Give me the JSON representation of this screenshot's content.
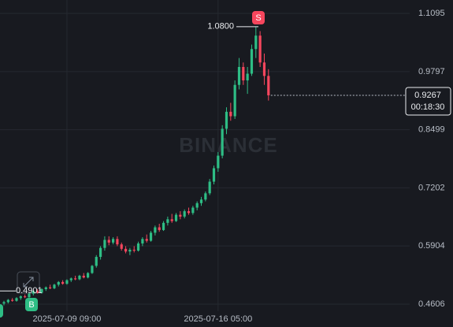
{
  "chart_data": {
    "type": "candlestick",
    "categories": [
      null,
      null,
      null,
      null,
      null,
      null,
      null,
      null,
      null,
      null,
      null,
      null,
      null,
      null,
      null,
      "2025-07-09 09:00",
      null,
      null,
      null,
      null,
      null,
      null,
      null,
      null,
      null,
      null,
      null,
      null,
      null,
      null,
      null,
      null,
      null,
      null,
      null,
      null,
      null,
      null,
      null,
      null,
      null,
      null,
      null,
      null,
      null,
      null,
      null,
      null,
      null,
      null,
      null,
      "2025-07-16 05:00",
      null,
      null,
      null,
      null,
      null,
      null,
      null,
      null,
      null,
      null,
      null,
      null
    ],
    "open": [
      0.462,
      0.465,
      0.47,
      0.468,
      0.474,
      0.478,
      0.476,
      0.484,
      0.49,
      0.486,
      0.494,
      0.498,
      0.496,
      0.504,
      0.51,
      0.506,
      0.514,
      0.518,
      0.516,
      0.524,
      0.52,
      0.53,
      0.546,
      0.566,
      0.586,
      0.604,
      0.598,
      0.606,
      0.594,
      0.584,
      0.578,
      0.582,
      0.58,
      0.596,
      0.606,
      0.602,
      0.62,
      0.632,
      0.626,
      0.642,
      0.65,
      0.646,
      0.66,
      0.656,
      0.668,
      0.664,
      0.676,
      0.686,
      0.694,
      0.708,
      0.734,
      0.764,
      0.792,
      0.852,
      0.89,
      0.88,
      0.95,
      0.99,
      0.96,
      0.975,
      1.03,
      1.06,
      1.0,
      0.97
    ],
    "high": [
      0.468,
      0.472,
      0.474,
      0.476,
      0.48,
      0.482,
      0.486,
      0.492,
      0.494,
      0.496,
      0.5,
      0.504,
      0.506,
      0.512,
      0.514,
      0.516,
      0.52,
      0.524,
      0.526,
      0.53,
      0.532,
      0.548,
      0.57,
      0.59,
      0.612,
      0.612,
      0.61,
      0.612,
      0.598,
      0.59,
      0.586,
      0.59,
      0.6,
      0.61,
      0.616,
      0.624,
      0.636,
      0.64,
      0.646,
      0.656,
      0.662,
      0.664,
      0.668,
      0.672,
      0.676,
      0.68,
      0.69,
      0.7,
      0.712,
      0.74,
      0.77,
      0.8,
      0.86,
      0.9,
      0.91,
      0.96,
      1.01,
      1.0,
      0.99,
      1.04,
      1.08,
      1.07,
      1.02,
      0.985
    ],
    "low": [
      0.458,
      0.462,
      0.466,
      0.466,
      0.47,
      0.474,
      0.474,
      0.48,
      0.484,
      0.484,
      0.49,
      0.494,
      0.494,
      0.5,
      0.504,
      0.504,
      0.51,
      0.514,
      0.514,
      0.518,
      0.518,
      0.528,
      0.542,
      0.56,
      0.58,
      0.592,
      0.594,
      0.59,
      0.58,
      0.574,
      0.57,
      0.576,
      0.578,
      0.59,
      0.598,
      0.6,
      0.614,
      0.622,
      0.624,
      0.636,
      0.642,
      0.644,
      0.65,
      0.652,
      0.66,
      0.66,
      0.67,
      0.68,
      0.69,
      0.704,
      0.728,
      0.756,
      0.786,
      0.84,
      0.87,
      0.874,
      0.94,
      0.95,
      0.93,
      0.97,
      1.01,
      0.99,
      0.95,
      0.915
    ],
    "close": [
      0.465,
      0.47,
      0.468,
      0.474,
      0.478,
      0.476,
      0.484,
      0.49,
      0.486,
      0.494,
      0.498,
      0.496,
      0.504,
      0.51,
      0.506,
      0.514,
      0.518,
      0.516,
      0.524,
      0.52,
      0.53,
      0.546,
      0.566,
      0.586,
      0.604,
      0.598,
      0.606,
      0.594,
      0.584,
      0.578,
      0.582,
      0.58,
      0.596,
      0.606,
      0.602,
      0.62,
      0.632,
      0.626,
      0.642,
      0.65,
      0.646,
      0.66,
      0.656,
      0.668,
      0.664,
      0.676,
      0.686,
      0.694,
      0.708,
      0.734,
      0.764,
      0.792,
      0.852,
      0.89,
      0.88,
      0.95,
      0.99,
      0.96,
      0.975,
      1.03,
      1.06,
      1.0,
      0.97,
      0.9267
    ],
    "up_color": "#2ebd85",
    "down_color": "#f6465d",
    "ylim": [
      0.4447,
      1.1395
    ],
    "yticks": [
      1.1095,
      0.9797,
      0.8499,
      0.7202,
      0.5904,
      0.4606
    ],
    "grid": true,
    "last_price": 0.9267,
    "countdown": "00:18:30",
    "sell_marker": "S",
    "sell_price": {
      "value": 1.08,
      "label": "1.0800"
    },
    "buy_marker": "B",
    "buy_price": 0.4901,
    "watermark": "BINANCE"
  }
}
